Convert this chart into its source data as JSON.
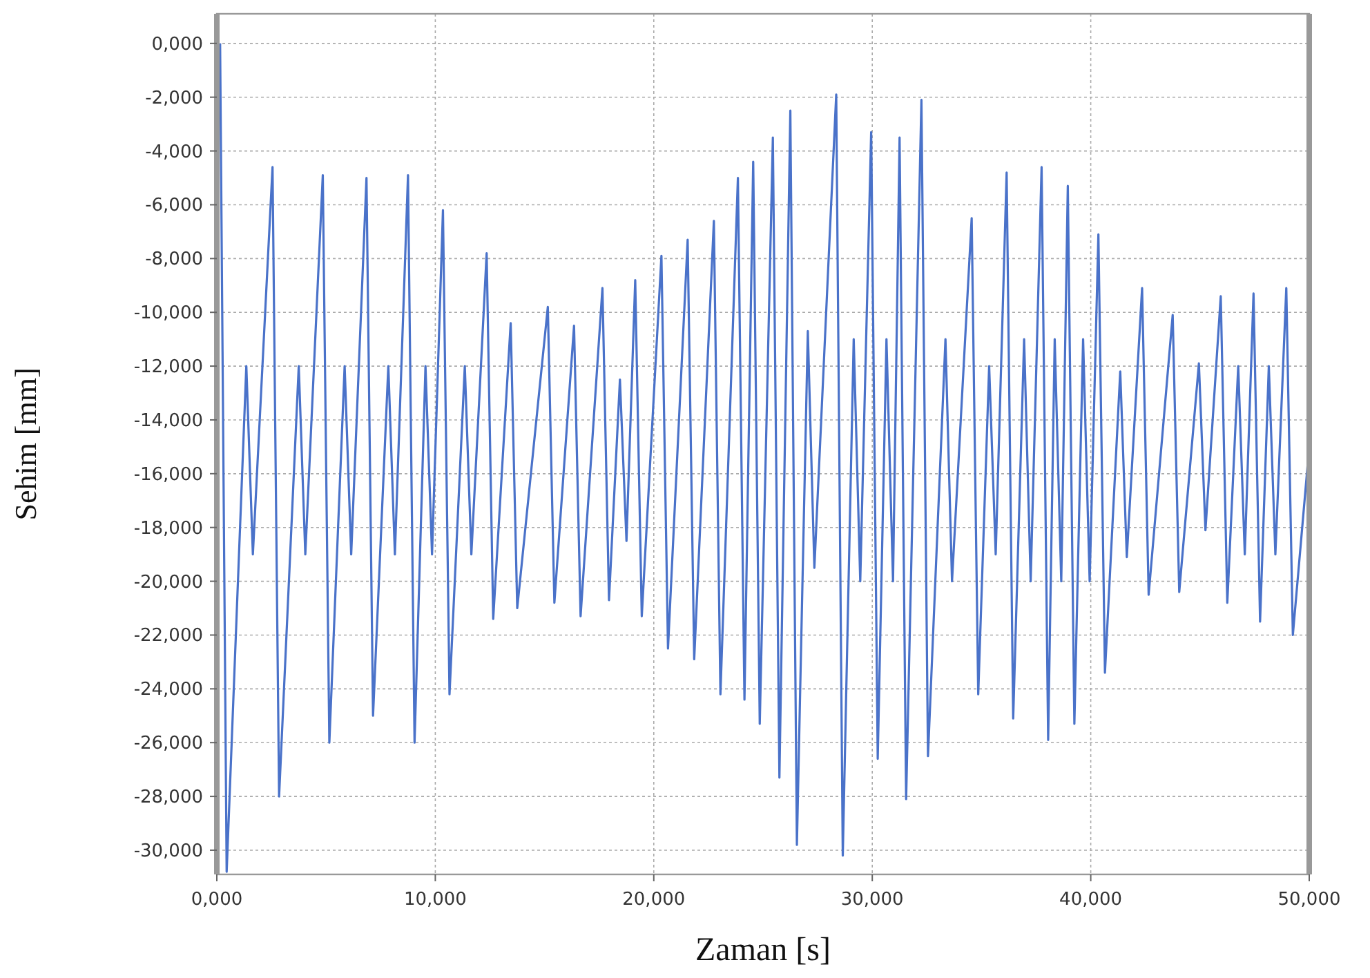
{
  "chart_data": {
    "type": "line",
    "xlabel": "Zaman [s]",
    "ylabel": "Sehim [mm]",
    "xlim": [
      0,
      50
    ],
    "ylim": [
      -30.9,
      1.1
    ],
    "xticks": [
      {
        "value": 0,
        "label": "0,000"
      },
      {
        "value": 10,
        "label": "10,000"
      },
      {
        "value": 20,
        "label": "20,000"
      },
      {
        "value": 30,
        "label": "30,000"
      },
      {
        "value": 40,
        "label": "40,000"
      },
      {
        "value": 50,
        "label": "50,000"
      }
    ],
    "yticks": [
      {
        "value": 0,
        "label": "0,000"
      },
      {
        "value": -2,
        "label": "-2,000"
      },
      {
        "value": -4,
        "label": "-4,000"
      },
      {
        "value": -6,
        "label": "-6,000"
      },
      {
        "value": -8,
        "label": "-8,000"
      },
      {
        "value": -10,
        "label": "-10,000"
      },
      {
        "value": -12,
        "label": "-12,000"
      },
      {
        "value": -14,
        "label": "-14,000"
      },
      {
        "value": -16,
        "label": "-16,000"
      },
      {
        "value": -18,
        "label": "-18,000"
      },
      {
        "value": -20,
        "label": "-20,000"
      },
      {
        "value": -22,
        "label": "-22,000"
      },
      {
        "value": -24,
        "label": "-24,000"
      },
      {
        "value": -26,
        "label": "-26,000"
      },
      {
        "value": -28,
        "label": "-28,000"
      },
      {
        "value": -30,
        "label": "-30,000"
      }
    ],
    "grid": true,
    "line_style": "solid",
    "marker": "none",
    "series": [
      {
        "color": "#4a72c9",
        "x": [
          0.15,
          0.45,
          1.35,
          1.65,
          2.55,
          2.85,
          3.75,
          4.05,
          4.85,
          5.15,
          5.85,
          6.15,
          6.85,
          7.15,
          7.85,
          8.15,
          8.75,
          9.05,
          9.55,
          9.85,
          10.35,
          10.65,
          11.35,
          11.65,
          12.35,
          12.65,
          13.45,
          13.75,
          15.15,
          15.45,
          16.35,
          16.65,
          17.65,
          17.95,
          18.45,
          18.75,
          19.15,
          19.45,
          20.35,
          20.65,
          21.55,
          21.85,
          22.75,
          23.05,
          23.85,
          24.15,
          24.55,
          24.85,
          25.45,
          25.75,
          26.25,
          26.55,
          27.05,
          27.35,
          28.35,
          28.65,
          29.15,
          29.45,
          29.95,
          30.25,
          30.65,
          30.95,
          31.25,
          31.55,
          32.25,
          32.55,
          33.35,
          33.65,
          34.55,
          34.85,
          35.35,
          35.65,
          36.15,
          36.45,
          36.95,
          37.25,
          37.75,
          38.05,
          38.35,
          38.65,
          38.95,
          39.25,
          39.65,
          39.95,
          40.35,
          40.65,
          41.35,
          41.65,
          42.35,
          42.65,
          43.75,
          44.05,
          44.95,
          45.25,
          45.95,
          46.25,
          46.75,
          47.05,
          47.45,
          47.75,
          48.15,
          48.45,
          48.95,
          49.25,
          50
        ],
        "values": [
          0,
          -30.8,
          -12,
          -19,
          -4.6,
          -28,
          -12,
          -19,
          -4.9,
          -26,
          -12,
          -19,
          -5,
          -25,
          -12,
          -19,
          -4.9,
          -26,
          -12,
          -19,
          -6.2,
          -24.2,
          -12,
          -19,
          -7.8,
          -21.4,
          -10.4,
          -21,
          -9.8,
          -20.8,
          -10.5,
          -21.3,
          -9.1,
          -20.7,
          -12.5,
          -18.5,
          -8.8,
          -21.3,
          -7.9,
          -22.5,
          -7.3,
          -22.9,
          -6.6,
          -24.2,
          -5,
          -24.4,
          -4.4,
          -25.3,
          -3.5,
          -27.3,
          -2.5,
          -29.8,
          -10.7,
          -19.5,
          -1.9,
          -30.2,
          -11,
          -20,
          -3.3,
          -26.6,
          -11,
          -20,
          -3.5,
          -28.1,
          -2.1,
          -26.5,
          -11,
          -20,
          -6.5,
          -24.2,
          -12,
          -19,
          -4.8,
          -25.1,
          -11,
          -20,
          -4.6,
          -25.9,
          -11,
          -20,
          -5.3,
          -25.3,
          -11,
          -20,
          -7.1,
          -23.4,
          -12.2,
          -19.1,
          -9.1,
          -20.5,
          -10.1,
          -20.4,
          -11.9,
          -18.1,
          -9.4,
          -20.8,
          -12,
          -19,
          -9.3,
          -21.5,
          -12,
          -19,
          -9.1,
          -22,
          -15
        ]
      }
    ]
  }
}
